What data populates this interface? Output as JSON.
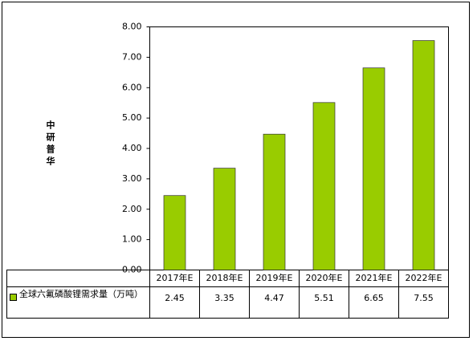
{
  "chart_data": {
    "type": "bar",
    "annotation": "中研普华",
    "categories": [
      "2017年E",
      "2018年E",
      "2019年E",
      "2020年E",
      "2021年E",
      "2022年E"
    ],
    "series": [
      {
        "name": "全球六氟磷酸锂需求量（万吨）",
        "color": "#99cc00",
        "values": [
          2.45,
          3.35,
          4.47,
          5.51,
          6.65,
          7.55
        ]
      }
    ],
    "ylim": [
      0,
      8
    ],
    "yticks": [
      {
        "value": 0,
        "label": "0.00"
      },
      {
        "value": 1,
        "label": "1.00"
      },
      {
        "value": 2,
        "label": "2.00"
      },
      {
        "value": 3,
        "label": "3.00"
      },
      {
        "value": 4,
        "label": "4.00"
      },
      {
        "value": 5,
        "label": "5.00"
      },
      {
        "value": 6,
        "label": "6.00"
      },
      {
        "value": 7,
        "label": "7.00"
      },
      {
        "value": 8,
        "label": "8.00"
      }
    ],
    "grid": false
  }
}
